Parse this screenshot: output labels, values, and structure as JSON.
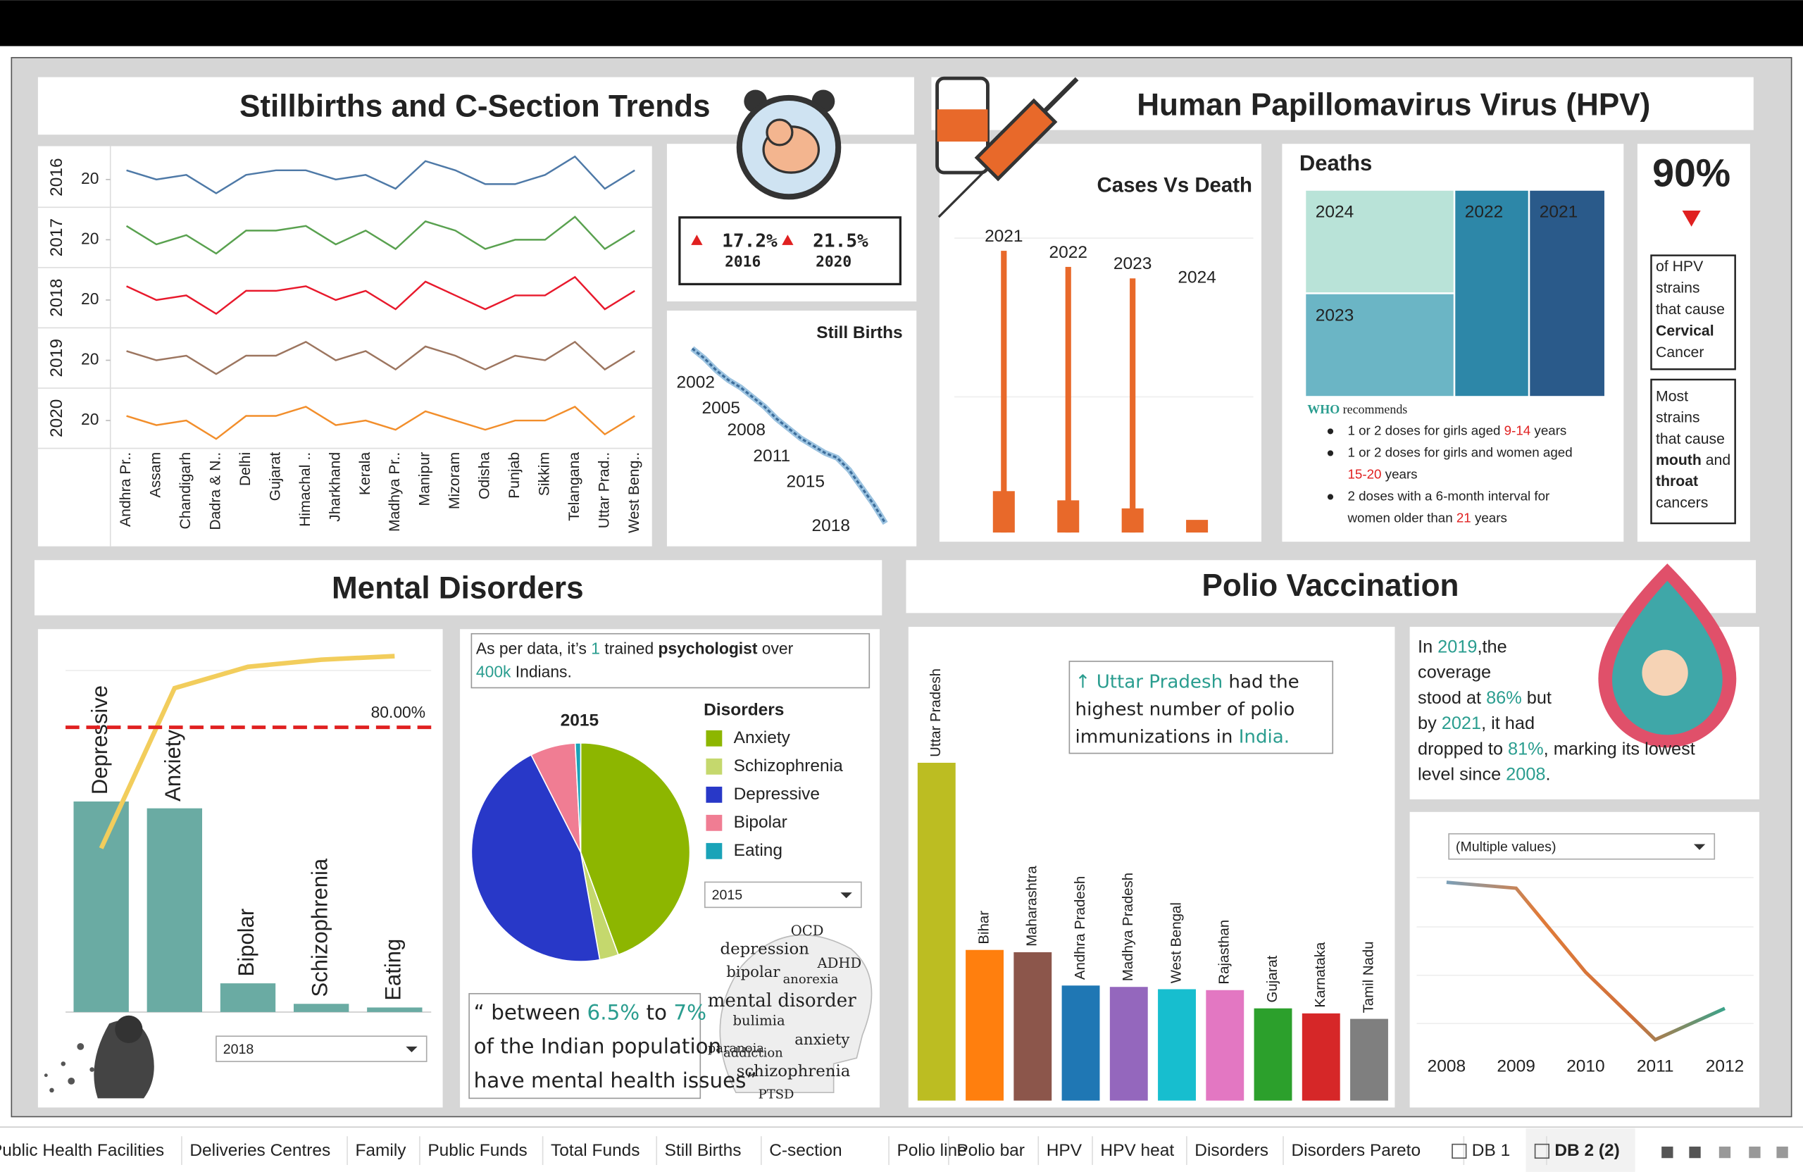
{
  "tabs": [
    "Public Health Facilities",
    "Deliveries Centres",
    "Family",
    "Public Funds",
    "Total Funds",
    "Still Births",
    "C-section",
    "Polio line",
    "Polio bar",
    "HPV",
    "HPV heat",
    "Disorders",
    "Disorders Pareto",
    "DB 1",
    "DB 2 (2)"
  ],
  "sections": {
    "stillbirths": {
      "title": "Stillbirths and C-Section Trends"
    },
    "hpv": {
      "title": "Human Papillomavirus Virus (HPV)"
    },
    "mental": {
      "title": "Mental Disorders"
    },
    "polio": {
      "title": "Polio Vaccination"
    }
  },
  "kpi": [
    {
      "value": "17.2%",
      "year": "2016"
    },
    {
      "value": "21.5%",
      "year": "2020"
    }
  ],
  "hpv_stat": {
    "value": "90%",
    "cervical": [
      [
        {
          "text": "of HPV"
        }
      ],
      [
        {
          "text": "strains"
        }
      ],
      [
        {
          "text": "that cause"
        }
      ],
      [
        {
          "text": "Cervical",
          "bold": true
        }
      ],
      [
        {
          "text": "Cancer"
        }
      ]
    ],
    "mouth": [
      [
        {
          "text": "Most"
        }
      ],
      [
        {
          "text": "strains"
        }
      ],
      [
        {
          "text": "that cause"
        }
      ],
      [
        {
          "text": "mouth",
          "bold": true
        },
        {
          "text": " and"
        }
      ],
      [
        {
          "text": "throat",
          "bold": true
        }
      ],
      [
        {
          "text": "cancers"
        }
      ]
    ]
  },
  "who": {
    "heading": [
      [
        {
          "text": "WHO",
          "color": "#2a9d8f",
          "bold": true
        },
        {
          "text": " recommends"
        }
      ]
    ],
    "bullets": [
      [
        [
          {
            "text": "1 or 2 doses for girls aged "
          },
          {
            "text": "9-14",
            "color": "#e02020"
          },
          {
            "text": " years"
          }
        ]
      ],
      [
        [
          {
            "text": "1 or 2 doses for girls and women aged"
          }
        ],
        [
          {
            "text": "15-20",
            "color": "#e02020"
          },
          {
            "text": " years"
          }
        ]
      ],
      [
        [
          {
            "text": "2 doses with a 6-month interval for"
          }
        ],
        [
          {
            "text": "women older than "
          },
          {
            "text": "21",
            "color": "#e02020"
          },
          {
            "text": " years"
          }
        ]
      ]
    ]
  },
  "mental_note": [
    [
      {
        "text": "As per data, it’s "
      },
      {
        "text": "1",
        "color": "#2a9d8f"
      },
      {
        "text": " trained "
      },
      {
        "text": "psychologist",
        "bold": true
      },
      {
        "text": " over"
      }
    ],
    [
      {
        "text": "400k",
        "color": "#2a9d8f"
      },
      {
        "text": " Indians."
      }
    ]
  ],
  "mental_quote": [
    [
      {
        "text": "“ between "
      },
      {
        "text": "6.5%",
        "color": "#2a9d8f"
      },
      {
        "text": " to "
      },
      {
        "text": "7%",
        "color": "#2a9d8f"
      }
    ],
    [
      {
        "text": "of the Indian population"
      }
    ],
    [
      {
        "text": "have mental health issues”"
      }
    ]
  ],
  "polio_note": [
    [
      {
        "text": "↑ Uttar Pradesh",
        "color": "#2a9d8f"
      },
      {
        "text": " had the"
      }
    ],
    [
      {
        "text": "highest number of polio"
      }
    ],
    [
      {
        "text": "immunizations in "
      },
      {
        "text": "India.",
        "color": "#2a9d8f"
      }
    ]
  ],
  "polio_text": [
    [
      {
        "text": "In "
      },
      {
        "text": "2019",
        "color": "#2a9d8f"
      },
      {
        "text": ",the"
      }
    ],
    [
      {
        "text": "coverage"
      }
    ],
    [
      {
        "text": "stood at "
      },
      {
        "text": "86%",
        "color": "#2a9d8f"
      },
      {
        "text": " but"
      }
    ],
    [
      {
        "text": "by "
      },
      {
        "text": "2021",
        "color": "#2a9d8f"
      },
      {
        "text": ", it had"
      }
    ],
    [
      {
        "text": "dropped to "
      },
      {
        "text": "81%",
        "color": "#2a9d8f"
      },
      {
        "text": ", marking its lowest"
      }
    ],
    [
      {
        "text": "level since "
      },
      {
        "text": "2008",
        "color": "#2a9d8f"
      },
      {
        "text": "."
      }
    ]
  ],
  "filters": {
    "pareto": "2018",
    "pie": "2015",
    "polio_line": "(Multiple values)"
  },
  "wordcloud": [
    "OCD",
    "depression",
    "ADHD",
    "bipolar",
    "anorexia",
    "mental disorder",
    "bulimia",
    "anxiety",
    "paranoia",
    "addiction",
    "schizophrenia",
    "PTSD"
  ],
  "chart_data": [
    {
      "type": "line",
      "categories": [
        "Andhra Pr..",
        "Assam",
        "Chandigarh",
        "Dadra & N..",
        "Delhi",
        "Gujarat",
        "Himachal ..",
        "Jharkhand",
        "Kerala",
        "Madhya Pr..",
        "Manipur",
        "Mizoram",
        "Odisha",
        "Punjab",
        "Sikkim",
        "Telangana",
        "Uttar Prad..",
        "West Beng.."
      ],
      "series": [
        {
          "name": "2016",
          "color": "#4e79a7",
          "values": [
            22,
            20,
            21,
            17,
            21,
            22,
            22,
            20,
            21,
            18,
            24,
            22,
            19,
            19,
            21,
            25,
            18,
            22
          ]
        },
        {
          "name": "2017",
          "color": "#59a14f",
          "values": [
            23,
            19,
            21,
            17,
            22,
            22,
            23,
            19,
            22,
            18,
            24,
            22,
            18,
            20,
            20,
            25,
            18,
            22
          ]
        },
        {
          "name": "2018",
          "color": "#e8192c",
          "values": [
            23,
            20,
            21,
            17,
            22,
            22,
            23,
            20,
            22,
            18,
            24,
            21,
            18,
            21,
            21,
            25,
            18,
            22
          ]
        },
        {
          "name": "2019",
          "color": "#9c755f",
          "values": [
            22,
            20,
            21,
            17,
            21,
            21,
            24,
            20,
            22,
            18,
            23,
            21,
            18,
            21,
            20,
            24,
            18,
            22
          ]
        },
        {
          "name": "2020",
          "color": "#f28e2b",
          "values": [
            21,
            19,
            20,
            16,
            21,
            21,
            23,
            19,
            20,
            18,
            22,
            20,
            18,
            20,
            20,
            23,
            17,
            21
          ]
        }
      ],
      "ylim": [
        14,
        27
      ],
      "yticks": [
        20
      ]
    },
    {
      "type": "line",
      "title": "Still Births",
      "categories": [
        "2002",
        null,
        null,
        "2005",
        null,
        null,
        "2008",
        null,
        null,
        "2011",
        null,
        null,
        null,
        "2015",
        null,
        null,
        "2018"
      ],
      "values": [
        10.2,
        9.8,
        9.3,
        8.9,
        8.6,
        8.2,
        7.8,
        7.3,
        6.9,
        6.5,
        6.2,
        5.9,
        5.7,
        5.2,
        4.5,
        3.8,
        3.0
      ],
      "ylim": [
        3,
        10.2
      ],
      "color": "#3d6e9c"
    },
    {
      "type": "bar",
      "title": "Cases Vs Death",
      "categories": [
        "2021",
        "2022",
        "2023",
        "2024"
      ],
      "series": [
        {
          "name": "Cases",
          "color": "#e8692a",
          "values": [
            245,
            231,
            221,
            null
          ]
        },
        {
          "name": "Deaths",
          "color": "#e8692a",
          "values": [
            36,
            28,
            21,
            11
          ]
        }
      ],
      "ylim": [
        0,
        260
      ]
    },
    {
      "type": "treemap",
      "title": "Deaths",
      "categories": [
        "2024",
        "2023",
        "2022",
        "2021"
      ],
      "values": [
        25,
        25,
        25,
        25.5
      ],
      "colors": [
        "#b9e3d8",
        "#6bb5c5",
        "#2d87a8",
        "#2a5a8a"
      ]
    },
    {
      "type": "pareto",
      "categories": [
        "Depressive",
        "Anxiety",
        "Bipolar",
        "Schizophrenia",
        "Eating"
      ],
      "values": [
        46.2,
        44.7,
        6.3,
        1.8,
        1.0
      ],
      "cumulative_values": [
        46,
        91,
        97,
        99,
        100
      ],
      "ylim": [
        0,
        82
      ],
      "y2lim": [
        0,
        105
      ],
      "reference": {
        "value": 80,
        "label": "80.00%"
      },
      "color": "#6aaba3",
      "line_color": "#f2cd5c",
      "reference_color": "#e02020"
    },
    {
      "type": "pie",
      "title": "2015",
      "legend_title": "Disorders",
      "categories": [
        "Anxiety",
        "Schizophrenia",
        "Depressive",
        "Bipolar",
        "Eating"
      ],
      "values": [
        44.4,
        2.8,
        45.3,
        6.7,
        0.8
      ],
      "colors": [
        "#8db600",
        "#c5d86d",
        "#2838c8",
        "#f07d93",
        "#1aa3b8"
      ]
    },
    {
      "type": "bar",
      "categories": [
        "Uttar Pradesh",
        "Bihar",
        "Maharashtra",
        "Andhra Pradesh",
        "Madhya Pradesh",
        "West Bengal",
        "Rajasthan",
        "Gujarat",
        "Karnataka",
        "Tamil Nadu"
      ],
      "values": [
        74,
        33,
        32.5,
        25.2,
        24.9,
        24.4,
        24.2,
        20.2,
        19.1,
        17.9
      ],
      "ylim": [
        0,
        100
      ],
      "colors": [
        "#bcbd22",
        "#ff7f0e",
        "#8c564b",
        "#1f77b4",
        "#9467bd",
        "#17becf",
        "#e377c2",
        "#2ca02c",
        "#d62728",
        "#7f7f7f"
      ]
    },
    {
      "type": "line",
      "categories": [
        "2008",
        "2009",
        "2010",
        "2011",
        "2012"
      ],
      "values": [
        86.8,
        86.2,
        77.6,
        70.7,
        73.9
      ],
      "ylim": [
        70,
        90
      ],
      "colors": [
        "#7a9fb8",
        "#e07b39",
        "#d0703a",
        "#3aa38a"
      ]
    }
  ]
}
